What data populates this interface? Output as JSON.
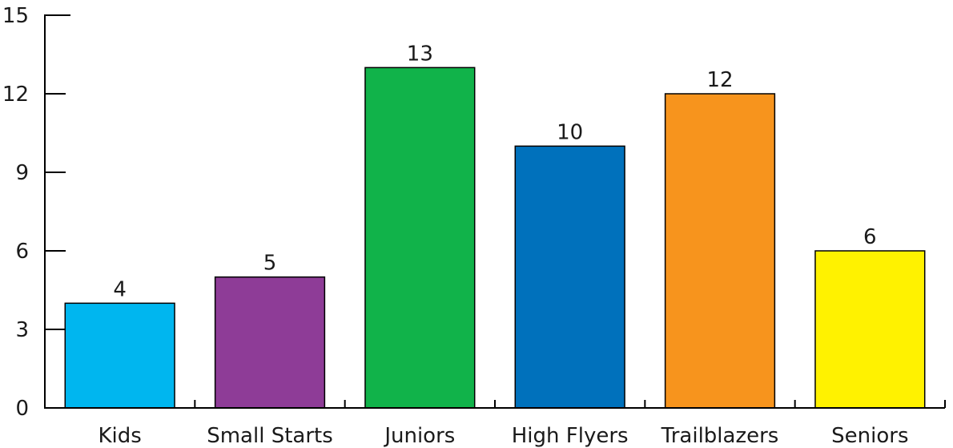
{
  "chart_data": {
    "type": "bar",
    "title": "",
    "xlabel": "",
    "ylabel": "",
    "categories": [
      "Kids",
      "Small Starts",
      "Juniors",
      "High Flyers",
      "Trailblazers",
      "Seniors"
    ],
    "values": [
      4,
      5,
      13,
      10,
      12,
      6
    ],
    "colors": [
      "#00b6ef",
      "#8e3c97",
      "#11b34a",
      "#0071bc",
      "#f7941d",
      "#fff200"
    ],
    "ylim": [
      0,
      15
    ],
    "yticks": [
      0,
      3,
      6,
      9,
      12,
      15
    ],
    "data_labels": true,
    "grid": false,
    "legend": "none"
  }
}
